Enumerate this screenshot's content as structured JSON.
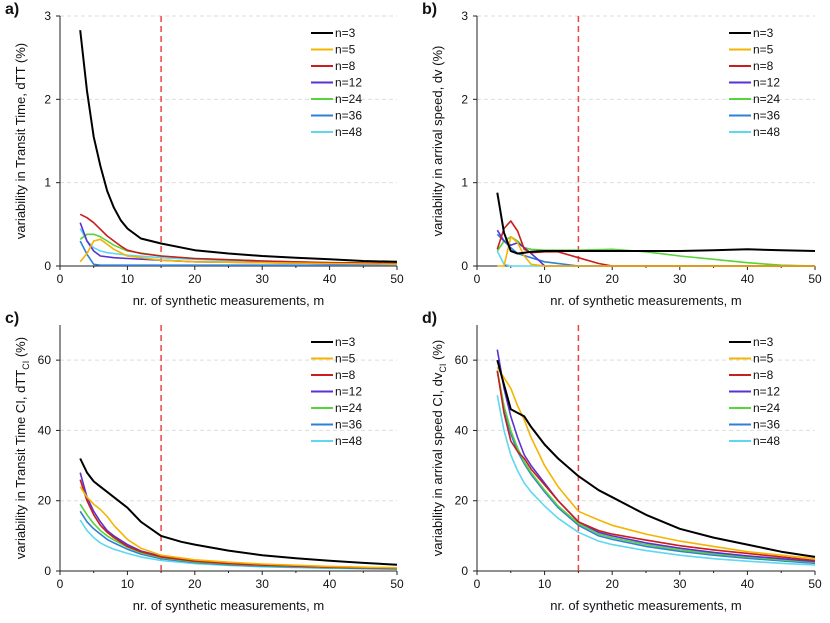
{
  "colors": {
    "n=3": "#000000",
    "n=5": "#f5b400",
    "n=8": "#c81e1e",
    "n=12": "#5a32d2",
    "n=24": "#5ad23c",
    "n=36": "#2f7fd6",
    "n=48": "#5fd7f0",
    "threshold": "#ee4444",
    "grid": "#dddddd"
  },
  "chart_data": [
    {
      "type": "line",
      "panel_label": "a)",
      "xlabel": "nr. of synthetic measurements, m",
      "ylabel": "variability in Transit Time, dTT (%)",
      "xlim": [
        0,
        50
      ],
      "ylim": [
        0,
        3
      ],
      "xticks": [
        "0",
        "10",
        "20",
        "30",
        "40",
        "50"
      ],
      "yticks": [
        "0",
        "1",
        "2",
        "3"
      ],
      "threshold_x": 15,
      "legend": [
        "n=3",
        "n=5",
        "n=8",
        "n=12",
        "n=24",
        "n=36",
        "n=48"
      ],
      "series": [
        {
          "name": "n=3",
          "x": [
            3,
            4,
            5,
            6,
            7,
            8,
            9,
            10,
            12,
            15,
            20,
            25,
            30,
            35,
            40,
            45,
            50
          ],
          "y": [
            2.83,
            2.1,
            1.55,
            1.2,
            0.9,
            0.7,
            0.55,
            0.45,
            0.33,
            0.27,
            0.19,
            0.15,
            0.12,
            0.1,
            0.08,
            0.06,
            0.05
          ]
        },
        {
          "name": "n=5",
          "x": [
            3,
            4,
            5,
            6,
            7,
            8,
            10,
            15,
            20,
            30,
            40,
            50
          ],
          "y": [
            0.05,
            0.15,
            0.3,
            0.32,
            0.26,
            0.2,
            0.12,
            0.07,
            0.05,
            0.04,
            0.03,
            0.02
          ]
        },
        {
          "name": "n=8",
          "x": [
            3,
            4,
            5,
            6,
            7,
            8,
            9,
            10,
            12,
            15,
            20,
            30,
            40,
            50
          ],
          "y": [
            0.62,
            0.58,
            0.52,
            0.44,
            0.36,
            0.3,
            0.24,
            0.19,
            0.15,
            0.12,
            0.09,
            0.06,
            0.04,
            0.03
          ]
        },
        {
          "name": "n=12",
          "x": [
            3,
            4,
            5,
            6,
            8,
            10,
            15,
            20,
            30,
            40,
            50
          ],
          "y": [
            0.52,
            0.3,
            0.18,
            0.12,
            0.1,
            0.09,
            0.07,
            0.05,
            0.04,
            0.03,
            0.02
          ]
        },
        {
          "name": "n=24",
          "x": [
            3,
            4,
            5,
            6,
            7,
            8,
            10,
            15,
            20,
            30,
            40,
            50
          ],
          "y": [
            0.32,
            0.38,
            0.38,
            0.35,
            0.3,
            0.25,
            0.18,
            0.12,
            0.09,
            0.06,
            0.04,
            0.03
          ]
        },
        {
          "name": "n=36",
          "x": [
            3,
            4,
            5,
            6,
            8,
            10,
            15,
            20,
            30,
            40,
            50
          ],
          "y": [
            0.3,
            0.14,
            0.02,
            0.01,
            0.01,
            0.01,
            0.01,
            0.01,
            0.01,
            0.01,
            0.01
          ]
        },
        {
          "name": "n=48",
          "x": [
            3,
            4,
            5,
            6,
            7,
            8,
            10,
            15,
            20,
            30,
            40,
            50
          ],
          "y": [
            0.45,
            0.3,
            0.22,
            0.18,
            0.16,
            0.15,
            0.13,
            0.1,
            0.08,
            0.05,
            0.03,
            0.02
          ]
        }
      ]
    },
    {
      "type": "line",
      "panel_label": "b)",
      "xlabel": "nr. of synthetic measurements, m",
      "ylabel": "variability in arrival speed, dv (%)",
      "xlim": [
        0,
        50
      ],
      "ylim": [
        0,
        3
      ],
      "xticks": [
        "0",
        "10",
        "20",
        "30",
        "40",
        "50"
      ],
      "yticks": [
        "0",
        "1",
        "2",
        "3"
      ],
      "threshold_x": 15,
      "legend": [
        "n=3",
        "n=5",
        "n=8",
        "n=12",
        "n=24",
        "n=36",
        "n=48"
      ],
      "series": [
        {
          "name": "n=3",
          "x": [
            3,
            4,
            5,
            6,
            7,
            8,
            10,
            15,
            20,
            25,
            30,
            35,
            40,
            45,
            50
          ],
          "y": [
            0.88,
            0.4,
            0.18,
            0.15,
            0.16,
            0.17,
            0.18,
            0.18,
            0.18,
            0.18,
            0.18,
            0.19,
            0.2,
            0.19,
            0.18
          ]
        },
        {
          "name": "n=5",
          "x": [
            3,
            4,
            5,
            6,
            7,
            8,
            10,
            15,
            20,
            30,
            40,
            50
          ],
          "y": [
            0.0,
            0.0,
            0.35,
            0.28,
            0.12,
            0.02,
            0.0,
            0.0,
            0.0,
            0.0,
            0.0,
            0.0
          ]
        },
        {
          "name": "n=8",
          "x": [
            3,
            4,
            5,
            6,
            7,
            8,
            10,
            12,
            15,
            18,
            20,
            30,
            40,
            50
          ],
          "y": [
            0.2,
            0.45,
            0.54,
            0.42,
            0.2,
            0.16,
            0.17,
            0.17,
            0.1,
            0.03,
            0.0,
            0.0,
            0.0,
            0.0
          ]
        },
        {
          "name": "n=12",
          "x": [
            3,
            4,
            5,
            6,
            7,
            8,
            9,
            10,
            12,
            15,
            20,
            30,
            40,
            50
          ],
          "y": [
            0.43,
            0.3,
            0.25,
            0.28,
            0.22,
            0.15,
            0.08,
            0.0,
            0.0,
            0.0,
            0.0,
            0.0,
            0.0,
            0.0
          ]
        },
        {
          "name": "n=24",
          "x": [
            3,
            4,
            5,
            6,
            7,
            8,
            10,
            15,
            20,
            25,
            30,
            35,
            40,
            45,
            50
          ],
          "y": [
            0.18,
            0.3,
            0.35,
            0.3,
            0.22,
            0.2,
            0.19,
            0.19,
            0.2,
            0.17,
            0.12,
            0.08,
            0.04,
            0.01,
            0.0
          ]
        },
        {
          "name": "n=36",
          "x": [
            3,
            4,
            5,
            6,
            8,
            10,
            15,
            20,
            30,
            40,
            50
          ],
          "y": [
            0.38,
            0.3,
            0.22,
            0.15,
            0.1,
            0.05,
            0.0,
            0.0,
            0.0,
            0.0,
            0.0
          ]
        },
        {
          "name": "n=48",
          "x": [
            3,
            4,
            5,
            6,
            8,
            10,
            15,
            20,
            30,
            40,
            50
          ],
          "y": [
            0.18,
            0.02,
            0.0,
            0.0,
            0.0,
            0.0,
            0.0,
            0.0,
            0.0,
            0.0,
            0.0
          ]
        }
      ]
    },
    {
      "type": "line",
      "panel_label": "c)",
      "xlabel": "nr. of synthetic measurements, m",
      "ylabel_main": "variability in Transit Time CI, dTT",
      "ylabel_sub": "CI",
      "ylabel_tail": " (%)",
      "xlim": [
        0,
        50
      ],
      "ylim": [
        0,
        70
      ],
      "xticks": [
        "0",
        "10",
        "20",
        "30",
        "40",
        "50"
      ],
      "yticks": [
        "0",
        "20",
        "40",
        "60"
      ],
      "threshold_x": 15,
      "legend": [
        "n=3",
        "n=5",
        "n=8",
        "n=12",
        "n=24",
        "n=36",
        "n=48"
      ],
      "series": [
        {
          "name": "n=3",
          "x": [
            3,
            4,
            5,
            6,
            7,
            8,
            10,
            12,
            15,
            18,
            20,
            25,
            30,
            35,
            40,
            45,
            50
          ],
          "y": [
            32,
            28,
            25.5,
            24,
            22.5,
            21,
            18,
            14,
            10,
            8.3,
            7.5,
            5.8,
            4.5,
            3.6,
            2.9,
            2.3,
            1.8
          ]
        },
        {
          "name": "n=5",
          "x": [
            3,
            4,
            5,
            6,
            7,
            8,
            10,
            12,
            15,
            20,
            25,
            30,
            40,
            50
          ],
          "y": [
            24,
            21,
            19,
            17.5,
            15.5,
            13,
            9,
            6.5,
            4.5,
            3.2,
            2.5,
            2,
            1.3,
            0.9
          ]
        },
        {
          "name": "n=8",
          "x": [
            3,
            4,
            5,
            6,
            7,
            8,
            10,
            12,
            15,
            20,
            25,
            30,
            40,
            50
          ],
          "y": [
            26,
            20,
            16,
            13,
            11,
            9.5,
            7,
            5.5,
            4,
            2.8,
            2.1,
            1.7,
            1.1,
            0.8
          ]
        },
        {
          "name": "n=12",
          "x": [
            3,
            4,
            5,
            6,
            7,
            8,
            10,
            12,
            15,
            20,
            25,
            30,
            40,
            50
          ],
          "y": [
            28,
            21,
            17,
            14,
            11.5,
            10,
            7.5,
            5.7,
            4.2,
            2.9,
            2.2,
            1.7,
            1.1,
            0.8
          ]
        },
        {
          "name": "n=24",
          "x": [
            3,
            4,
            5,
            6,
            7,
            8,
            10,
            12,
            15,
            20,
            25,
            30,
            40,
            50
          ],
          "y": [
            19,
            16,
            13.5,
            11.5,
            10,
            8.8,
            6.8,
            5.2,
            3.8,
            2.6,
            2,
            1.6,
            1,
            0.7
          ]
        },
        {
          "name": "n=36",
          "x": [
            3,
            4,
            5,
            6,
            7,
            8,
            10,
            12,
            15,
            20,
            25,
            30,
            40,
            50
          ],
          "y": [
            17,
            14,
            12,
            10.5,
            9,
            8,
            6.2,
            4.8,
            3.5,
            2.4,
            1.8,
            1.4,
            0.9,
            0.6
          ]
        },
        {
          "name": "n=48",
          "x": [
            3,
            4,
            5,
            6,
            7,
            8,
            10,
            12,
            15,
            20,
            25,
            30,
            40,
            50
          ],
          "y": [
            14.5,
            11.5,
            9.5,
            8,
            7,
            6.2,
            5,
            4,
            3,
            2.1,
            1.6,
            1.2,
            0.8,
            0.5
          ]
        }
      ]
    },
    {
      "type": "line",
      "panel_label": "d)",
      "xlabel": "nr. of synthetic measurements, m",
      "ylabel_main": "variability in arrival speed CI, dv",
      "ylabel_sub": "CI",
      "ylabel_tail": " (%)",
      "xlim": [
        0,
        50
      ],
      "ylim": [
        0,
        70
      ],
      "xticks": [
        "0",
        "10",
        "20",
        "30",
        "40",
        "50"
      ],
      "yticks": [
        "0",
        "20",
        "40",
        "60"
      ],
      "threshold_x": 15,
      "legend": [
        "n=3",
        "n=5",
        "n=8",
        "n=12",
        "n=24",
        "n=36",
        "n=48"
      ],
      "series": [
        {
          "name": "n=3",
          "x": [
            3,
            4,
            5,
            6,
            7,
            8,
            10,
            12,
            15,
            18,
            20,
            25,
            30,
            35,
            40,
            45,
            50
          ],
          "y": [
            60,
            53,
            46,
            45,
            44,
            41,
            36,
            32,
            27,
            23,
            21,
            16,
            12,
            9.5,
            7.5,
            5.5,
            4
          ]
        },
        {
          "name": "n=5",
          "x": [
            3,
            4,
            5,
            6,
            7,
            8,
            10,
            12,
            15,
            18,
            20,
            25,
            30,
            35,
            40,
            45,
            50
          ],
          "y": [
            58,
            55,
            52,
            47,
            43,
            38,
            30,
            24,
            17,
            14.5,
            13,
            10.5,
            8.5,
            7,
            5.5,
            4.5,
            3.5
          ]
        },
        {
          "name": "n=8",
          "x": [
            3,
            4,
            5,
            6,
            7,
            8,
            10,
            12,
            15,
            18,
            20,
            25,
            30,
            35,
            40,
            45,
            50
          ],
          "y": [
            57,
            45,
            37,
            34,
            32,
            29,
            24.5,
            20,
            14,
            11.5,
            10.5,
            8.8,
            7.2,
            6,
            5,
            4,
            3
          ]
        },
        {
          "name": "n=12",
          "x": [
            3,
            4,
            5,
            6,
            7,
            8,
            10,
            12,
            15,
            18,
            20,
            25,
            30,
            35,
            40,
            45,
            50
          ],
          "y": [
            63,
            52,
            44,
            38,
            33,
            30,
            25,
            20,
            14,
            11,
            10,
            8,
            6.5,
            5.3,
            4.3,
            3.5,
            2.7
          ]
        },
        {
          "name": "n=24",
          "x": [
            3,
            4,
            5,
            6,
            7,
            8,
            10,
            12,
            15,
            18,
            20,
            25,
            30,
            35,
            40,
            45,
            50
          ],
          "y": [
            57,
            47,
            40,
            35,
            31,
            28,
            23,
            18.5,
            13.5,
            10.5,
            9.5,
            7.5,
            6,
            4.9,
            4,
            3.2,
            2.5
          ]
        },
        {
          "name": "n=36",
          "x": [
            3,
            4,
            5,
            6,
            7,
            8,
            10,
            12,
            15,
            18,
            20,
            25,
            30,
            35,
            40,
            45,
            50
          ],
          "y": [
            57,
            46,
            39,
            34,
            30.5,
            27.5,
            22.5,
            18,
            13,
            10,
            9,
            7,
            5.6,
            4.5,
            3.6,
            2.9,
            2.2
          ]
        },
        {
          "name": "n=48",
          "x": [
            3,
            4,
            5,
            6,
            7,
            8,
            10,
            12,
            15,
            18,
            20,
            25,
            30,
            35,
            40,
            45,
            50
          ],
          "y": [
            50,
            40,
            33,
            28.5,
            25,
            22.5,
            18.5,
            15,
            11,
            8.5,
            7.5,
            5.8,
            4.5,
            3.5,
            2.8,
            2.2,
            1.7
          ]
        }
      ]
    }
  ]
}
